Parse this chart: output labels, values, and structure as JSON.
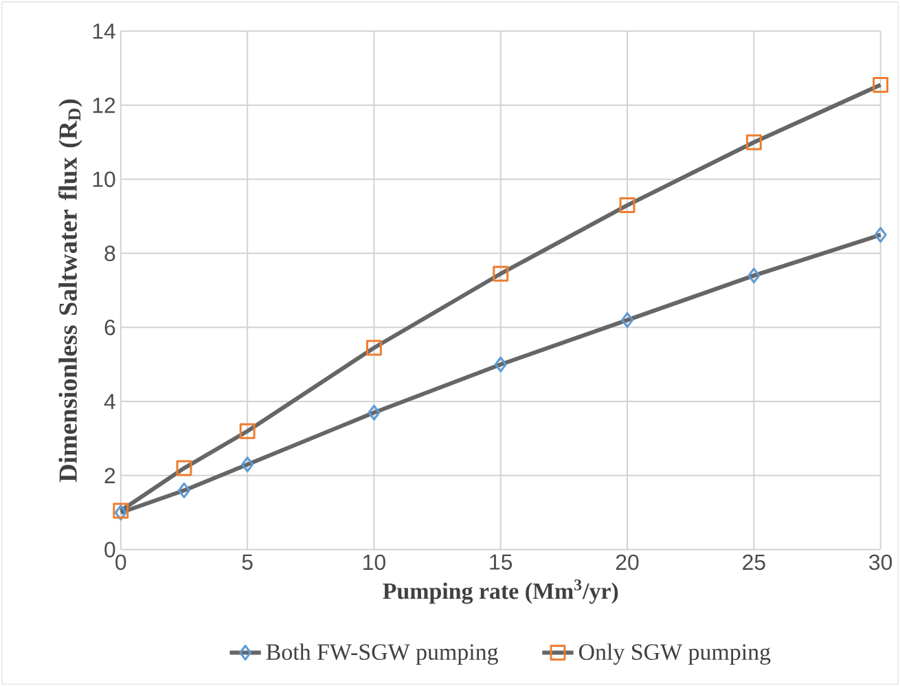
{
  "chart_data": {
    "type": "line",
    "xlabel": "Pumping rate (Mm$^{3}$/yr)",
    "ylabel": "Dimensionless Saltwater flux (R$_{D}$)",
    "x": [
      0,
      2.5,
      5,
      10,
      15,
      20,
      25,
      30
    ],
    "series": [
      {
        "name": "Both FW-SGW pumping",
        "color": "#5b9bd5",
        "marker": "diamond",
        "values": [
          1.0,
          1.6,
          2.3,
          3.7,
          5.0,
          6.2,
          7.4,
          8.5
        ]
      },
      {
        "name": "Only SGW pumping",
        "color": "#ed7d31",
        "marker": "square",
        "values": [
          1.05,
          2.2,
          3.2,
          5.45,
          7.45,
          9.3,
          11.0,
          12.55
        ]
      }
    ],
    "xlim": [
      0,
      30
    ],
    "xticks": [
      0,
      5,
      10,
      15,
      20,
      25,
      30
    ],
    "ylim": [
      0,
      14
    ],
    "yticks": [
      0,
      2,
      4,
      6,
      8,
      10,
      12,
      14
    ],
    "grid": true,
    "legend": "bottom",
    "line_style": "solid"
  }
}
